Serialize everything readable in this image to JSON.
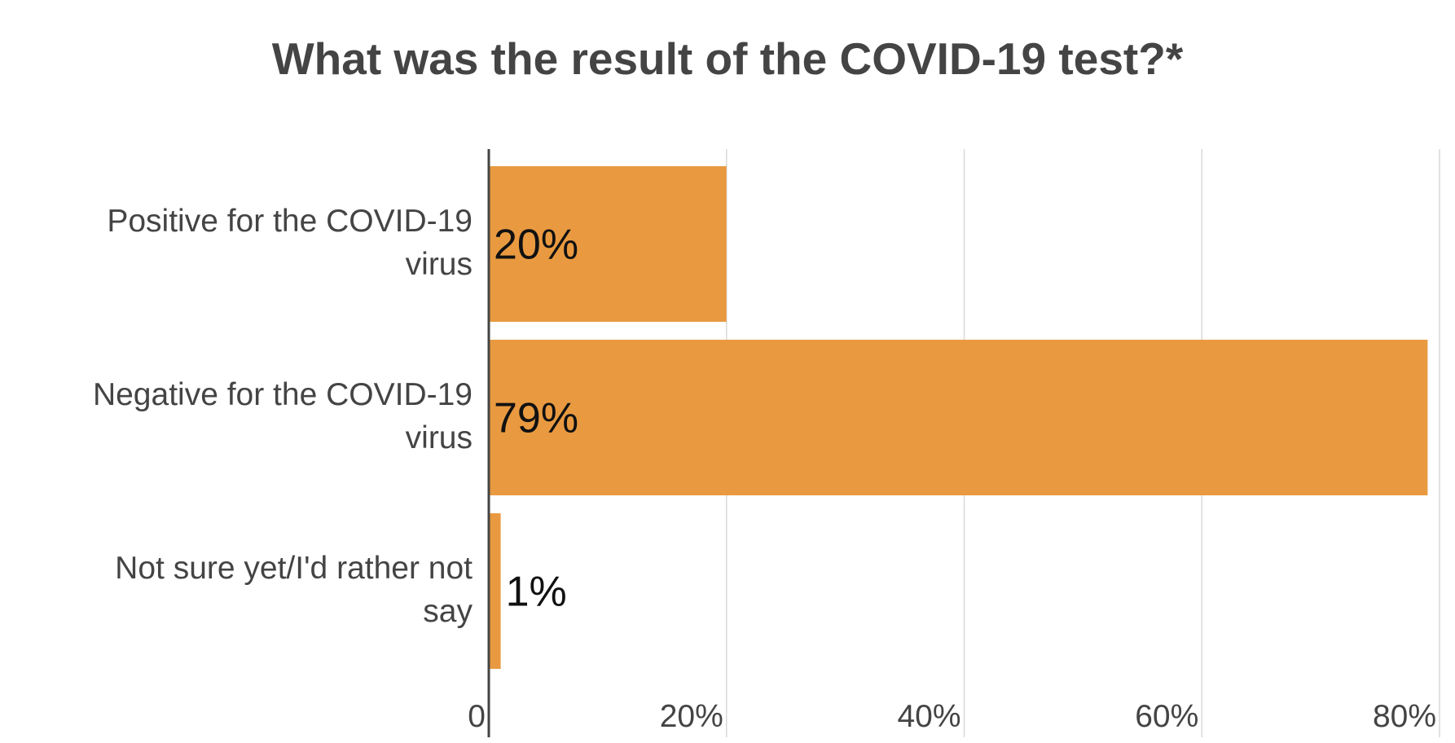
{
  "chart_data": {
    "type": "bar",
    "orientation": "horizontal",
    "title": "What was the result of the COVID-19 test?*",
    "categories": [
      [
        "Positive for the COVID-19",
        "virus"
      ],
      [
        "Negative for the COVID-19",
        "virus"
      ],
      [
        "Not sure yet/I'd rather not",
        "say"
      ]
    ],
    "values": [
      20,
      79,
      1
    ],
    "data_labels": [
      "20%",
      "79%",
      "1%"
    ],
    "xlim": [
      0,
      80
    ],
    "xticks": [
      0,
      20,
      40,
      60,
      80
    ],
    "xtick_labels": [
      "0",
      "20%",
      "40%",
      "60%",
      "80%"
    ],
    "grid": true,
    "bar_color": "#E99A40",
    "grid_color": "#d9d9d9",
    "axis_color": "#444444"
  }
}
